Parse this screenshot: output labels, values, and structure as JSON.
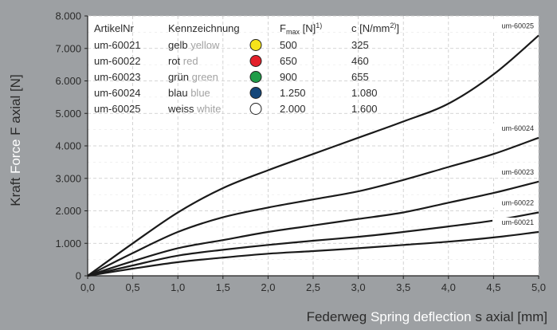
{
  "colors": {
    "plot_bg": "#ffffff",
    "page_bg": "#9da0a3",
    "curve": "#1a1a1a",
    "grid": "#c8c8c8",
    "text_dark": "#2b2b2b",
    "text_light": "#ffffff",
    "legend_grey": "#a3a3a3"
  },
  "axis_labels": {
    "y_de": "Kraft",
    "y_en": "Force",
    "y_sym": "F axial [N]",
    "x_de": "Federweg",
    "x_en": "Spring deflection",
    "x_sym": "s axial [mm]"
  },
  "chart_data": {
    "type": "line",
    "xlim": [
      0,
      5
    ],
    "ylim": [
      0,
      8000
    ],
    "grid": true,
    "x_ticks": [
      "0,0",
      "0,5",
      "1,0",
      "1,5",
      "2,0",
      "2,5",
      "3,0",
      "3,5",
      "4,0",
      "4,5",
      "5,0"
    ],
    "y_ticks": [
      "0",
      "1.000",
      "2.000",
      "3.000",
      "4.000",
      "5.000",
      "6.000",
      "7.000",
      "8.000"
    ],
    "x": [
      0,
      0.5,
      1.0,
      1.5,
      2.0,
      2.5,
      3.0,
      3.5,
      4.0,
      4.5,
      5.0
    ],
    "series": [
      {
        "name": "um-60025",
        "values": [
          0,
          1000,
          1950,
          2700,
          3250,
          3750,
          4250,
          4750,
          5300,
          6200,
          7400
        ]
      },
      {
        "name": "um-60024",
        "values": [
          0,
          700,
          1350,
          1800,
          2100,
          2350,
          2600,
          2950,
          3350,
          3750,
          4250
        ]
      },
      {
        "name": "um-60023",
        "values": [
          0,
          450,
          850,
          1100,
          1350,
          1550,
          1750,
          1950,
          2250,
          2550,
          2900
        ]
      },
      {
        "name": "um-60022",
        "values": [
          0,
          320,
          620,
          800,
          950,
          1080,
          1200,
          1350,
          1520,
          1700,
          1950
        ]
      },
      {
        "name": "um-60021",
        "values": [
          0,
          220,
          420,
          560,
          680,
          760,
          850,
          950,
          1050,
          1180,
          1350
        ]
      }
    ]
  },
  "legend": {
    "headers": {
      "artikel": "ArtikelNr",
      "kennzeichnung": "Kennzeichnung",
      "fmax_base": "F",
      "fmax_sub": "max",
      "fmax_unit": " [N]",
      "fmax_sup": "1)",
      "c_base": "c [N/mm",
      "c_sup": "2)",
      "c_end": "]"
    },
    "rows": [
      {
        "artikel": "um-60021",
        "de": "gelb",
        "en": "yellow",
        "color": "#f5e31b",
        "fmax": "500",
        "c": "325"
      },
      {
        "artikel": "um-60022",
        "de": "rot",
        "en": "red",
        "color": "#e3202a",
        "fmax": "650",
        "c": "460"
      },
      {
        "artikel": "um-60023",
        "de": "grün",
        "en": "green",
        "color": "#1f9c48",
        "fmax": "900",
        "c": "655"
      },
      {
        "artikel": "um-60024",
        "de": "blau",
        "en": "blue",
        "color": "#15477a",
        "fmax": "1.250",
        "c": "1.080"
      },
      {
        "artikel": "um-60025",
        "de": "weiss",
        "en": "white",
        "color": "#ffffff",
        "fmax": "2.000",
        "c": "1.600"
      }
    ]
  }
}
